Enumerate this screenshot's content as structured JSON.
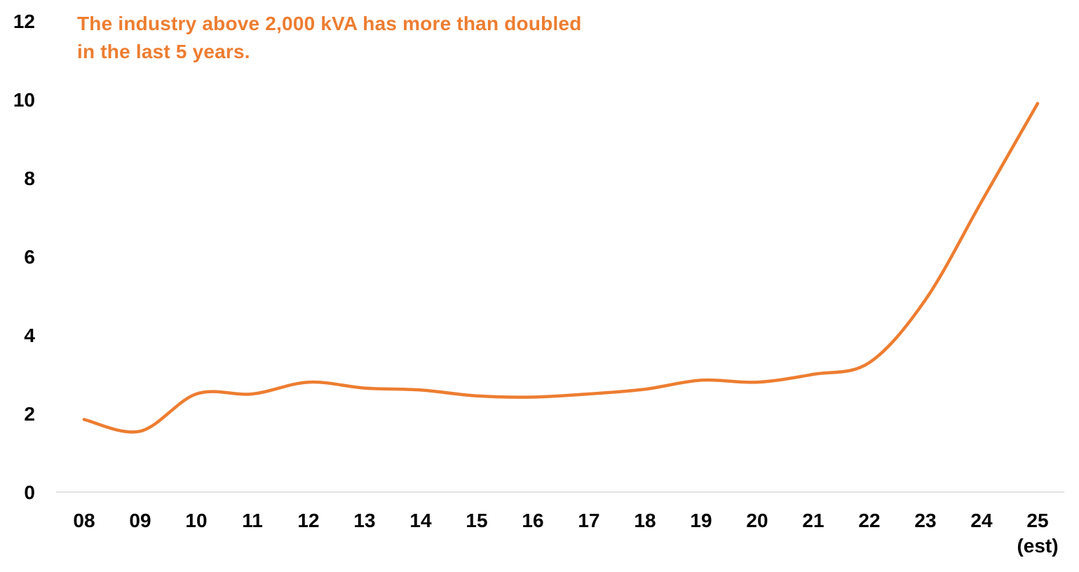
{
  "chart_data": {
    "type": "line",
    "title": "",
    "xlabel": "",
    "ylabel": "",
    "annotation_lines": [
      "The industry above 2,000 kVA has more than doubled",
      "in the last 5 years."
    ],
    "categories": [
      "08",
      "09",
      "10",
      "11",
      "12",
      "13",
      "14",
      "15",
      "16",
      "17",
      "18",
      "19",
      "20",
      "21",
      "22",
      "23",
      "24",
      "25"
    ],
    "category_sublabels": [
      "",
      "",
      "",
      "",
      "",
      "",
      "",
      "",
      "",
      "",
      "",
      "",
      "",
      "",
      "",
      "",
      "",
      "(est)"
    ],
    "series": [
      {
        "values": [
          1.85,
          1.55,
          2.5,
          2.5,
          2.8,
          2.65,
          2.6,
          2.45,
          2.42,
          2.5,
          2.62,
          2.85,
          2.8,
          3.0,
          3.3,
          4.9,
          7.4,
          9.9
        ]
      }
    ],
    "ylim": [
      0,
      12
    ],
    "yticks": [
      "0",
      "2",
      "4",
      "6",
      "8",
      "10",
      "12"
    ],
    "grid": false,
    "legend": "none",
    "colors": {
      "line": "#ED7D31",
      "annotation": "#ED7D31",
      "axis": "#D9D9D9",
      "tick_text": "#000000"
    }
  }
}
